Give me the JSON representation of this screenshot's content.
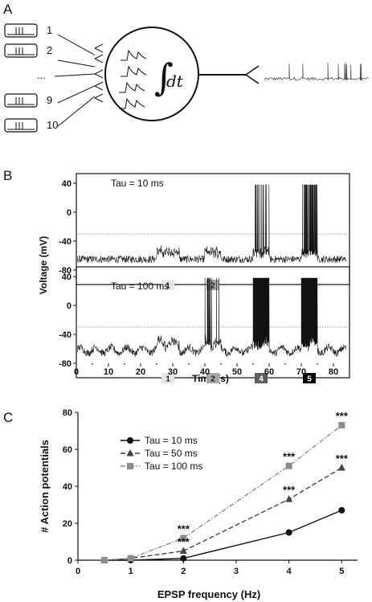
{
  "panels": {
    "a": {
      "label": "A",
      "input_labels": [
        "1",
        "2",
        "...",
        "9",
        "10"
      ],
      "integral_sign": "∫",
      "integral_dt": "dt"
    },
    "b": {
      "label": "B",
      "ylabel": "Voltage (mV)",
      "xlabel": "Time (s)",
      "threshold_mv": -30,
      "top_title": "Tau = 10 ms",
      "bottom_title": "Tau = 100 ms"
    },
    "c": {
      "label": "C"
    }
  },
  "chart_data": [
    {
      "type": "line",
      "title": "Tau = 10 ms",
      "xlabel": "Time (s)",
      "ylabel": "Voltage (mV)",
      "xlim": [
        0,
        85
      ],
      "ylim": [
        -100,
        50
      ],
      "x_ticks": [
        0,
        10,
        20,
        30,
        40,
        50,
        60,
        70,
        80
      ],
      "y_ticks": [
        40,
        0,
        -40,
        -80
      ],
      "baseline_mv": -65,
      "stimulus_epochs": [
        {
          "label": "1",
          "start": 25,
          "end": 32,
          "color": "#e6e6e6",
          "spikes": 0
        },
        {
          "label": "2",
          "start": 40,
          "end": 45,
          "color": "#a8a8a8",
          "spikes": 1
        },
        {
          "label": "4",
          "start": 55,
          "end": 60,
          "color": "#5e5e5e",
          "spikes": 15
        },
        {
          "label": "5",
          "start": 70,
          "end": 75,
          "color": "#000000",
          "spikes": 27
        }
      ]
    },
    {
      "type": "line",
      "title": "Tau = 100 ms",
      "xlabel": "Time (s)",
      "ylabel": "Voltage (mV)",
      "xlim": [
        0,
        85
      ],
      "ylim": [
        -100,
        50
      ],
      "x_ticks": [
        0,
        10,
        20,
        30,
        40,
        50,
        60,
        70,
        80
      ],
      "y_ticks": [
        40,
        0,
        -40,
        -80
      ],
      "baseline_mv": -62,
      "stimulus_epochs": [
        {
          "label": "1",
          "start": 25,
          "end": 32,
          "color": "#e6e6e6",
          "spikes": 0
        },
        {
          "label": "2",
          "start": 40,
          "end": 45,
          "color": "#a8a8a8",
          "spikes": 12
        },
        {
          "label": "4",
          "start": 55,
          "end": 60,
          "color": "#5e5e5e",
          "spikes": 51
        },
        {
          "label": "5",
          "start": 70,
          "end": 75,
          "color": "#000000",
          "spikes": 73
        }
      ]
    },
    {
      "type": "line",
      "xlabel": "EPSP frequency (Hz)",
      "ylabel": "# Action potentials",
      "xlim": [
        0,
        5.3
      ],
      "ylim": [
        0,
        80
      ],
      "x_ticks": [
        0,
        1,
        2,
        3,
        4,
        5
      ],
      "y_ticks": [
        0,
        20,
        40,
        60,
        80
      ],
      "legend_position": "upper-left",
      "series": [
        {
          "name": "Tau = 10 ms",
          "marker": "circle",
          "dash": "solid",
          "color": "#111111",
          "x": [
            0.5,
            1,
            2,
            4,
            5
          ],
          "y": [
            0,
            0,
            1,
            15,
            27
          ]
        },
        {
          "name": "Tau = 50 ms",
          "marker": "triangle",
          "dash": "dashed",
          "color": "#444444",
          "x": [
            0.5,
            1,
            2,
            4,
            5
          ],
          "y": [
            0,
            1,
            5,
            33,
            50
          ]
        },
        {
          "name": "Tau = 100 ms",
          "marker": "square",
          "dash": "dashdot",
          "color": "#8c8c8c",
          "x": [
            0.5,
            1,
            2,
            4,
            5
          ],
          "y": [
            0,
            1,
            12,
            51,
            73
          ]
        }
      ],
      "annotations": [
        {
          "text": "***",
          "x": 2,
          "y": 12
        },
        {
          "text": "***",
          "x": 2,
          "y": 5
        },
        {
          "text": "***",
          "x": 4,
          "y": 51
        },
        {
          "text": "***",
          "x": 4,
          "y": 33
        },
        {
          "text": "***",
          "x": 5,
          "y": 73
        },
        {
          "text": "***",
          "x": 5,
          "y": 50
        }
      ]
    }
  ]
}
